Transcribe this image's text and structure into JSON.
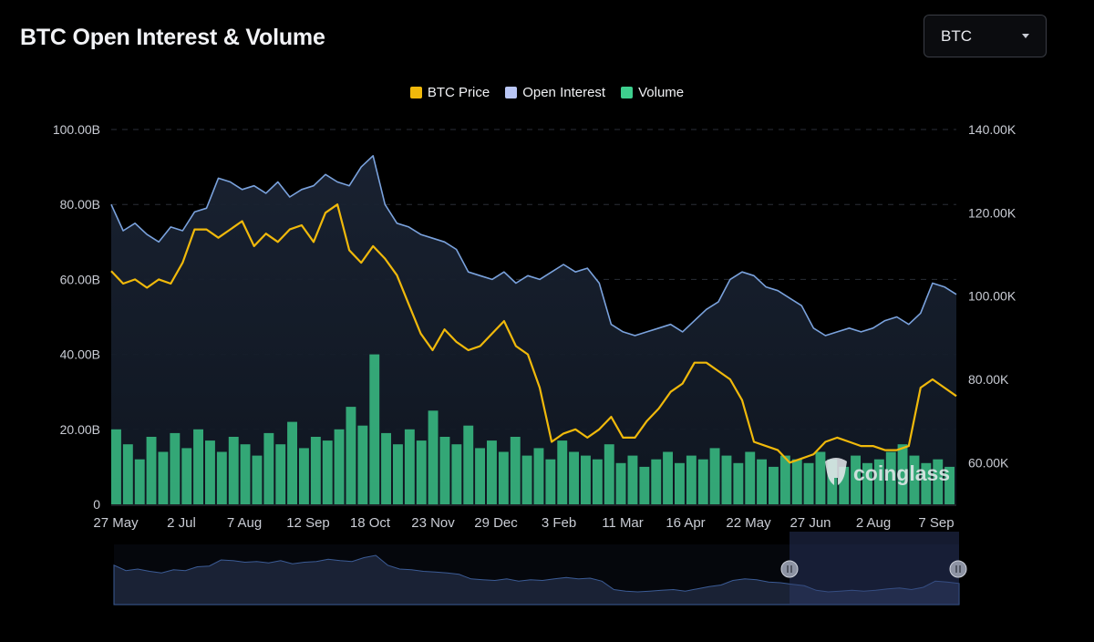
{
  "title": "BTC Open Interest & Volume",
  "selector": {
    "value": "BTC",
    "icon": "chevron-down-icon"
  },
  "watermark": "coinglass",
  "chart_data": {
    "type": "line",
    "legend_position": "top-center",
    "grid": true,
    "legend": [
      {
        "name": "BTC Price",
        "color": "#f0b90b"
      },
      {
        "name": "Open Interest",
        "color": "#b9c6f5"
      },
      {
        "name": "Volume",
        "color": "#3ecf8e"
      }
    ],
    "y_left": {
      "ticks": [
        "0",
        "20.00B",
        "40.00B",
        "60.00B",
        "80.00B",
        "100.00B"
      ],
      "range": [
        0,
        100
      ]
    },
    "y_right": {
      "ticks": [
        "60.00K",
        "80.00K",
        "100.00K",
        "120.00K",
        "140.00K"
      ],
      "range": [
        50,
        140
      ]
    },
    "x_ticks": [
      "27 May",
      "2 Jul",
      "7 Aug",
      "12 Sep",
      "18 Oct",
      "23 Nov",
      "29 Dec",
      "3 Feb",
      "11 Mar",
      "16 Apr",
      "22 May",
      "27 Jun",
      "2 Aug",
      "7 Sep"
    ],
    "series": [
      {
        "name": "Open Interest",
        "axis": "left",
        "unit": "B",
        "values": [
          80,
          73,
          75,
          72,
          70,
          74,
          73,
          78,
          79,
          87,
          86,
          84,
          85,
          83,
          86,
          82,
          84,
          85,
          88,
          86,
          85,
          90,
          93,
          80,
          75,
          74,
          72,
          71,
          70,
          68,
          62,
          61,
          60,
          62,
          59,
          61,
          60,
          62,
          64,
          62,
          63,
          59,
          48,
          46,
          45,
          46,
          47,
          48,
          46,
          49,
          52,
          54,
          60,
          62,
          61,
          58,
          57,
          55,
          53,
          47,
          45,
          46,
          47,
          46,
          47,
          49,
          50,
          48,
          51,
          59,
          58,
          56
        ]
      },
      {
        "name": "BTC Price",
        "axis": "right",
        "unit": "K",
        "values": [
          106,
          103,
          104,
          102,
          104,
          103,
          108,
          116,
          116,
          114,
          116,
          118,
          112,
          115,
          113,
          116,
          117,
          113,
          120,
          122,
          111,
          108,
          112,
          109,
          105,
          98,
          91,
          87,
          92,
          89,
          87,
          88,
          91,
          94,
          88,
          86,
          78,
          65,
          67,
          68,
          66,
          68,
          71,
          66,
          66,
          70,
          73,
          77,
          79,
          84,
          84,
          82,
          80,
          75,
          65,
          64,
          63,
          60,
          61,
          62,
          65,
          66,
          65,
          64,
          64,
          63,
          63,
          64,
          78,
          80,
          78,
          76
        ]
      },
      {
        "name": "Volume",
        "axis": "left",
        "unit": "B",
        "values": [
          20,
          16,
          12,
          18,
          14,
          19,
          15,
          20,
          17,
          14,
          18,
          16,
          13,
          19,
          16,
          22,
          15,
          18,
          17,
          20,
          26,
          21,
          40,
          19,
          16,
          20,
          17,
          25,
          18,
          16,
          21,
          15,
          17,
          14,
          18,
          13,
          15,
          12,
          17,
          14,
          13,
          12,
          16,
          11,
          13,
          10,
          12,
          14,
          11,
          13,
          12,
          15,
          13,
          11,
          14,
          12,
          10,
          13,
          12,
          11,
          14,
          12,
          10,
          13,
          11,
          12,
          14,
          16,
          13,
          11,
          12,
          10
        ]
      }
    ]
  }
}
